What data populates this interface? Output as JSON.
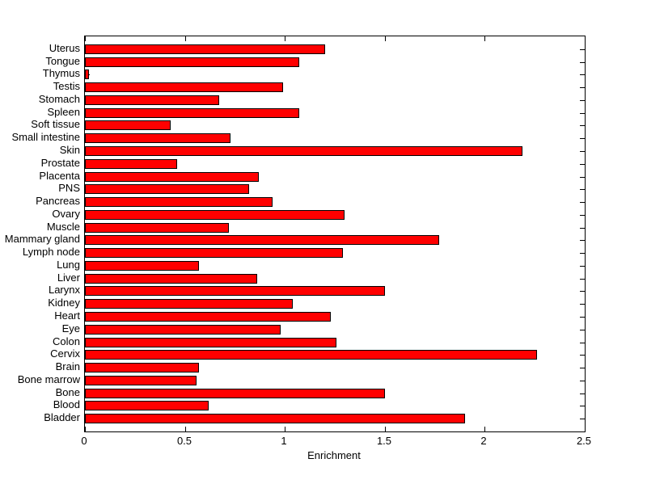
{
  "figure": {
    "background": "#ffffff"
  },
  "chart_data": {
    "type": "bar",
    "orientation": "horizontal",
    "title": "",
    "xlabel": "Enrichment",
    "ylabel": "",
    "xlim": [
      0,
      2.5
    ],
    "xticks": [
      0,
      0.5,
      1,
      1.5,
      2,
      2.5
    ],
    "xtick_labels": [
      "0",
      "0.5",
      "1",
      "1.5",
      "2",
      "2.5"
    ],
    "grid": false,
    "legend_position": "none",
    "bar_color": "#ff0000",
    "bar_edge_color": "#000000",
    "axis_color": "#000000",
    "categories": [
      "Uterus",
      "Tongue",
      "Thymus",
      "Testis",
      "Stomach",
      "Spleen",
      "Soft tissue",
      "Small intestine",
      "Skin",
      "Prostate",
      "Placenta",
      "PNS",
      "Pancreas",
      "Ovary",
      "Muscle",
      "Mammary gland",
      "Lymph node",
      "Lung",
      "Liver",
      "Larynx",
      "Kidney",
      "Heart",
      "Eye",
      "Colon",
      "Cervix",
      "Brain",
      "Bone marrow",
      "Bone",
      "Blood",
      "Bladder"
    ],
    "values": [
      1.2,
      1.07,
      0.02,
      0.99,
      0.67,
      1.07,
      0.43,
      0.73,
      2.19,
      0.46,
      0.87,
      0.82,
      0.94,
      1.3,
      0.72,
      1.77,
      1.29,
      0.57,
      0.86,
      1.5,
      1.04,
      1.23,
      0.98,
      1.26,
      2.26,
      0.57,
      0.56,
      1.5,
      0.62,
      1.9
    ]
  }
}
